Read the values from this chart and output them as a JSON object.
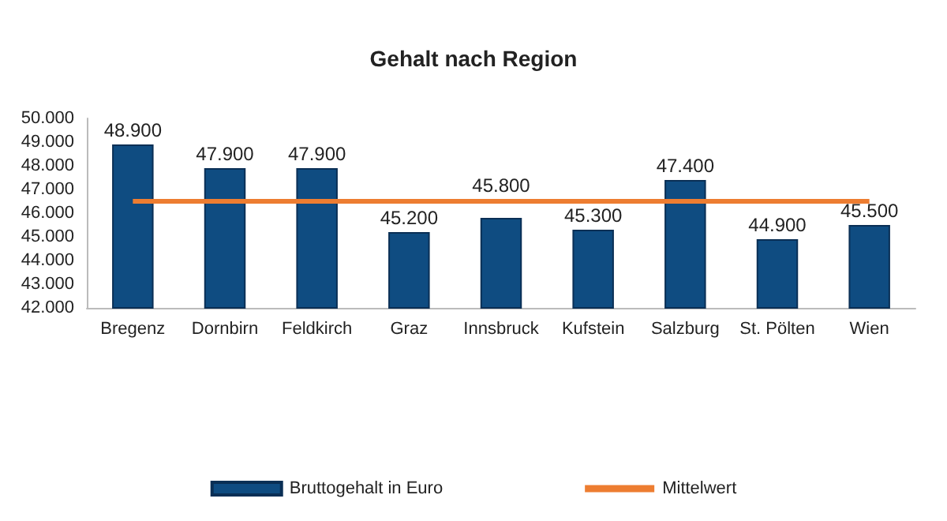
{
  "chart_data": {
    "type": "bar",
    "title": "Gehalt nach Region",
    "categories": [
      "Bregenz",
      "Dornbirn",
      "Feldkirch",
      "Graz",
      "Innsbruck",
      "Kufstein",
      "Salzburg",
      "St. Pölten",
      "Wien"
    ],
    "series": [
      {
        "name": "Bruttogehalt in Euro",
        "color": "#0f4c81",
        "values": [
          48900,
          47900,
          47900,
          45200,
          45800,
          45300,
          47400,
          44900,
          45500
        ],
        "value_labels": [
          "48.900",
          "47.900",
          "47.900",
          "45.200",
          "45.800",
          "45.300",
          "47.400",
          "44.900",
          "45.500"
        ]
      },
      {
        "name": "Mittelwert",
        "type": "line",
        "color": "#ed7d31",
        "values": [
          46500,
          46500,
          46500,
          46500,
          46500,
          46500,
          46500,
          46500,
          46500
        ],
        "marker": "none"
      }
    ],
    "ylim": [
      42000,
      50000
    ],
    "yticks": [
      {
        "value": 42000,
        "label": "42.000"
      },
      {
        "value": 43000,
        "label": "43.000"
      },
      {
        "value": 44000,
        "label": "44.000"
      },
      {
        "value": 45000,
        "label": "45.000"
      },
      {
        "value": 46000,
        "label": "46.000"
      },
      {
        "value": 47000,
        "label": "47.000"
      },
      {
        "value": 48000,
        "label": "48.000"
      },
      {
        "value": 49000,
        "label": "49.000"
      },
      {
        "value": 50000,
        "label": "50.000"
      }
    ],
    "grid": false,
    "legend": "bottom"
  }
}
